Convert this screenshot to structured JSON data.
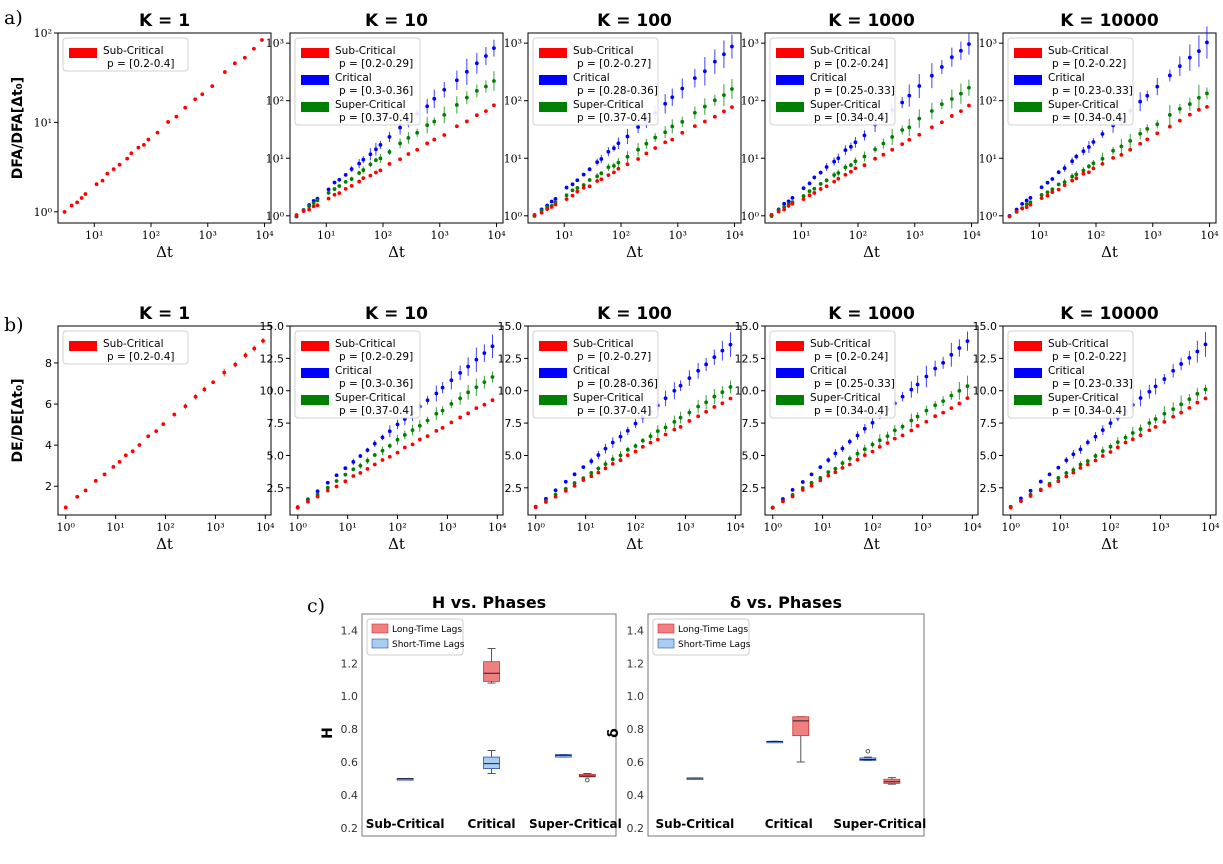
{
  "row_labels": {
    "a": "a)",
    "b": "b)",
    "c": "c)"
  },
  "colors": {
    "sub": "#ff0000",
    "crit": "#0000ff",
    "super": "#008000",
    "long": "#f08080",
    "short": "#a8cdf0",
    "short_border": "#2b4fb3",
    "long_border": "#cc3333"
  },
  "chart_data": [
    {
      "type": "scatter",
      "group": "a",
      "scale": "loglog",
      "ylabel": "DFA/DFA[Δt₀]",
      "xlabel": "Δt",
      "xlim": [
        2,
        12000
      ],
      "ylim": [
        0.75,
        100
      ],
      "x_ticks": [
        "10¹",
        "10²",
        "10³",
        "10⁴"
      ],
      "y_ticks": [
        "10⁰",
        "10¹",
        "10²"
      ],
      "y_tick_values": [
        1,
        10,
        100
      ],
      "x_tick_values": [
        10,
        100,
        1000,
        10000
      ],
      "panels": [
        {
          "title": "K = 1",
          "legend": [
            {
              "name": "Sub-Critical",
              "range": "p = [0.2-0.4]"
            }
          ],
          "sub_x0": 3,
          "sub_y0": 1.0,
          "sub_slope": 0.55,
          "crit": false
        },
        {
          "title": "K = 10",
          "legend": [
            {
              "name": "Sub-Critical",
              "range": "p = [0.2-0.29]"
            },
            {
              "name": "Critical",
              "range": "p = [0.3-0.36]"
            },
            {
              "name": "Super-Critical",
              "range": "p = [0.37-0.4]"
            }
          ],
          "ylim": [
            0.75,
            1500
          ],
          "y_ticks": [
            "10⁰",
            "10¹",
            "10²",
            "10³"
          ],
          "y_tick_values": [
            1,
            10,
            100,
            1000
          ],
          "sub_end": 80,
          "crit_end": 800,
          "super_end": 230,
          "crit": true
        },
        {
          "title": "K = 100",
          "legend": [
            {
              "name": "Sub-Critical",
              "range": "p = [0.2-0.27]"
            },
            {
              "name": "Critical",
              "range": "p = [0.28-0.36]"
            },
            {
              "name": "Super-Critical",
              "range": "p = [0.37-0.4]"
            }
          ],
          "ylim": [
            0.75,
            1500
          ],
          "y_ticks": [
            "10⁰",
            "10¹",
            "10²",
            "10³"
          ],
          "y_tick_values": [
            1,
            10,
            100,
            1000
          ],
          "sub_end": 80,
          "crit_end": 850,
          "super_end": 160,
          "crit": true
        },
        {
          "title": "K = 1000",
          "legend": [
            {
              "name": "Sub-Critical",
              "range": "p = [0.2-0.24]"
            },
            {
              "name": "Critical",
              "range": "p = [0.25-0.33]"
            },
            {
              "name": "Super-Critical",
              "range": "p = [0.34-0.4]"
            }
          ],
          "ylim": [
            0.75,
            1500
          ],
          "y_ticks": [
            "10⁰",
            "10¹",
            "10²",
            "10³"
          ],
          "y_tick_values": [
            1,
            10,
            100,
            1000
          ],
          "sub_end": 80,
          "crit_end": 1000,
          "super_end": 170,
          "crit": true
        },
        {
          "title": "K = 10000",
          "legend": [
            {
              "name": "Sub-Critical",
              "range": "p = [0.2-0.22]"
            },
            {
              "name": "Critical",
              "range": "p = [0.23-0.33]"
            },
            {
              "name": "Super-Critical",
              "range": "p = [0.34-0.4]"
            }
          ],
          "ylim": [
            0.75,
            1500
          ],
          "y_ticks": [
            "10⁰",
            "10¹",
            "10²",
            "10³"
          ],
          "y_tick_values": [
            1,
            10,
            100,
            1000
          ],
          "sub_end": 80,
          "crit_end": 1000,
          "super_end": 140,
          "crit": true
        }
      ]
    },
    {
      "type": "scatter",
      "group": "b",
      "scale": "semilogx",
      "ylabel": "DE/DE[Δt₀]",
      "xlabel": "Δt",
      "x_ticks": [
        "10⁰",
        "10¹",
        "10²",
        "10³",
        "10⁴"
      ],
      "x_tick_values": [
        1,
        10,
        100,
        1000,
        10000
      ],
      "panels": [
        {
          "title": "K = 1",
          "legend": [
            {
              "name": "Sub-Critical",
              "range": "p = [0.2-0.4]"
            }
          ],
          "ylim": [
            0.6,
            9.8
          ],
          "y_ticks": [
            "2",
            "4",
            "6",
            "8"
          ],
          "y_tick_values": [
            2,
            4,
            6,
            8
          ],
          "sub_end": 9.1,
          "crit": false,
          "x0": 1
        },
        {
          "title": "K = 10",
          "legend": [
            {
              "name": "Sub-Critical",
              "range": "p = [0.2-0.29]"
            },
            {
              "name": "Critical",
              "range": "p = [0.3-0.36]"
            },
            {
              "name": "Super-Critical",
              "range": "p = [0.37-0.4]"
            }
          ],
          "ylim": [
            0.4,
            15
          ],
          "y_ticks": [
            "2.5",
            "5.0",
            "7.5",
            "10.0",
            "12.5",
            "15.0"
          ],
          "y_tick_values": [
            2.5,
            5,
            7.5,
            10,
            12.5,
            15
          ],
          "sub_end": 9.3,
          "crit_end": 13.4,
          "super_end": 11.1,
          "crit": true,
          "x0": 1
        },
        {
          "title": "K = 100",
          "legend": [
            {
              "name": "Sub-Critical",
              "range": "p = [0.2-0.27]"
            },
            {
              "name": "Critical",
              "range": "p = [0.28-0.36]"
            },
            {
              "name": "Super-Critical",
              "range": "p = [0.37-0.4]"
            }
          ],
          "ylim": [
            0.4,
            15
          ],
          "y_ticks": [
            "2.5",
            "5.0",
            "7.5",
            "10.0",
            "12.5",
            "15.0"
          ],
          "y_tick_values": [
            2.5,
            5,
            7.5,
            10,
            12.5,
            15
          ],
          "sub_end": 9.4,
          "crit_end": 13.6,
          "super_end": 10.3,
          "crit": true,
          "x0": 1
        },
        {
          "title": "K = 1000",
          "legend": [
            {
              "name": "Sub-Critical",
              "range": "p = [0.2-0.24]"
            },
            {
              "name": "Critical",
              "range": "p = [0.25-0.33]"
            },
            {
              "name": "Super-Critical",
              "range": "p = [0.34-0.4]"
            }
          ],
          "ylim": [
            0.4,
            15
          ],
          "y_ticks": [
            "2.5",
            "5.0",
            "7.5",
            "10.0",
            "12.5",
            "15.0"
          ],
          "y_tick_values": [
            2.5,
            5,
            7.5,
            10,
            12.5,
            15
          ],
          "sub_end": 9.4,
          "crit_end": 13.8,
          "super_end": 10.4,
          "crit": true,
          "x0": 1
        },
        {
          "title": "K = 10000",
          "legend": [
            {
              "name": "Sub-Critical",
              "range": "p = [0.2-0.22]"
            },
            {
              "name": "Critical",
              "range": "p = [0.23-0.33]"
            },
            {
              "name": "Super-Critical",
              "range": "p = [0.34-0.4]"
            }
          ],
          "ylim": [
            0.4,
            15
          ],
          "y_ticks": [
            "2.5",
            "5.0",
            "7.5",
            "10.0",
            "12.5",
            "15.0"
          ],
          "y_tick_values": [
            2.5,
            5,
            7.5,
            10,
            12.5,
            15
          ],
          "sub_end": 9.4,
          "crit_end": 13.6,
          "super_end": 10.1,
          "crit": true,
          "x0": 1
        }
      ]
    },
    {
      "type": "box",
      "group": "c",
      "title": "H vs. Phases",
      "ylabel": "H",
      "ylim": [
        0.15,
        1.5
      ],
      "y_ticks": [
        "0.2",
        "0.4",
        "0.6",
        "0.8",
        "1.0",
        "1.2",
        "1.4"
      ],
      "y_tick_values": [
        0.2,
        0.4,
        0.6,
        0.8,
        1.0,
        1.2,
        1.4
      ],
      "categories": [
        "Sub-Critical",
        "Critical",
        "Super-Critical"
      ],
      "legend": [
        "Long-Time Lags",
        "Short-Time Lags"
      ],
      "boxes": [
        {
          "cat": 0,
          "series": "long",
          "min": 0.497,
          "q1": 0.497,
          "med": 0.498,
          "q3": 0.499,
          "max": 0.499
        },
        {
          "cat": 0,
          "series": "short",
          "min": 0.497,
          "q1": 0.497,
          "med": 0.498,
          "q3": 0.499,
          "max": 0.499
        },
        {
          "cat": 1,
          "series": "long",
          "min": 1.08,
          "q1": 1.09,
          "med": 1.14,
          "q3": 1.21,
          "max": 1.29
        },
        {
          "cat": 1,
          "series": "short",
          "min": 0.53,
          "q1": 0.56,
          "med": 0.59,
          "q3": 0.63,
          "max": 0.67
        },
        {
          "cat": 2,
          "series": "short",
          "min": 0.63,
          "q1": 0.63,
          "med": 0.64,
          "q3": 0.645,
          "max": 0.645
        },
        {
          "cat": 2,
          "series": "long",
          "min": 0.51,
          "q1": 0.51,
          "med": 0.515,
          "q3": 0.525,
          "max": 0.53,
          "outlier": 0.49
        }
      ]
    },
    {
      "type": "box",
      "group": "c",
      "title": "δ vs. Phases",
      "ylabel": "δ",
      "ylim": [
        0.15,
        1.5
      ],
      "y_ticks": [
        "0.2",
        "0.4",
        "0.6",
        "0.8",
        "1.0",
        "1.2",
        "1.4"
      ],
      "y_tick_values": [
        0.2,
        0.4,
        0.6,
        0.8,
        1.0,
        1.2,
        1.4
      ],
      "categories": [
        "Sub-Critical",
        "Critical",
        "Super-Critical"
      ],
      "legend": [
        "Long-Time Lags",
        "Short-Time Lags"
      ],
      "boxes": [
        {
          "cat": 0,
          "series": "short",
          "min": 0.5,
          "q1": 0.5,
          "med": 0.502,
          "q3": 0.503,
          "max": 0.503
        },
        {
          "cat": 1,
          "series": "short",
          "min": 0.725,
          "q1": 0.725,
          "med": 0.725,
          "q3": 0.726,
          "max": 0.726
        },
        {
          "cat": 1,
          "series": "long",
          "min": 0.6,
          "q1": 0.76,
          "med": 0.85,
          "q3": 0.875,
          "max": 0.875
        },
        {
          "cat": 2,
          "series": "short",
          "min": 0.61,
          "q1": 0.61,
          "med": 0.615,
          "q3": 0.625,
          "max": 0.63,
          "outlier": 0.665
        },
        {
          "cat": 2,
          "series": "long",
          "min": 0.465,
          "q1": 0.47,
          "med": 0.48,
          "q3": 0.495,
          "max": 0.505
        }
      ]
    }
  ]
}
